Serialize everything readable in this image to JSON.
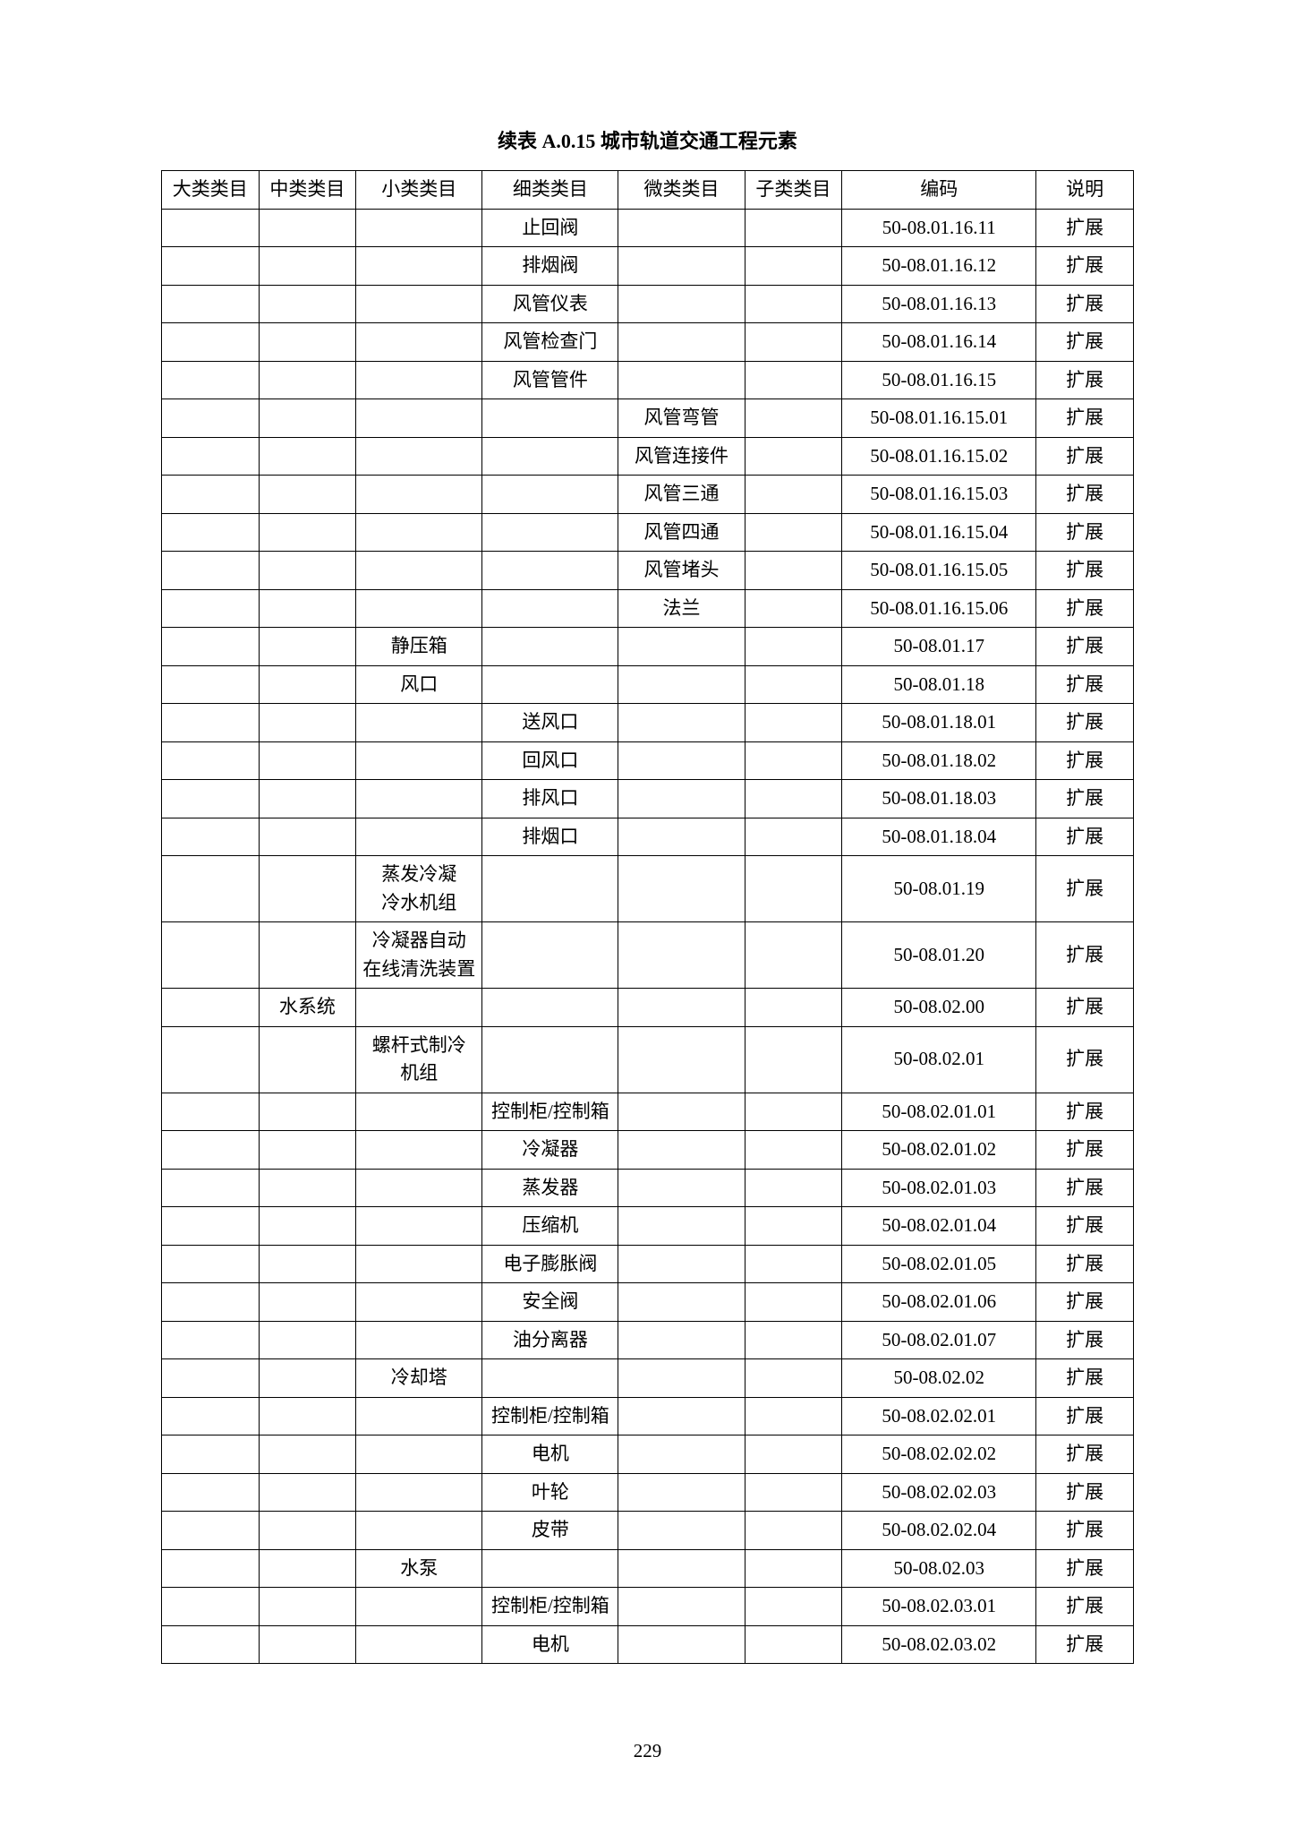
{
  "caption": "续表 A.0.15   城市轨道交通工程元素",
  "page_number": "229",
  "headers": [
    "大类类目",
    "中类类目",
    "小类类目",
    "细类类目",
    "微类类目",
    "子类类目",
    "编码",
    "说明"
  ],
  "colors": {
    "text": "#000000",
    "border": "#000000",
    "background": "#ffffff"
  },
  "font_sizes": {
    "caption": 22,
    "cell": 21,
    "page_num": 21
  },
  "column_widths_pct": [
    10,
    10,
    13,
    14,
    13,
    10,
    20,
    10
  ],
  "rows": [
    {
      "c": [
        "",
        "",
        "",
        "止回阀",
        "",
        "",
        "50-08.01.16.11",
        "扩展"
      ]
    },
    {
      "c": [
        "",
        "",
        "",
        "排烟阀",
        "",
        "",
        "50-08.01.16.12",
        "扩展"
      ]
    },
    {
      "c": [
        "",
        "",
        "",
        "风管仪表",
        "",
        "",
        "50-08.01.16.13",
        "扩展"
      ]
    },
    {
      "c": [
        "",
        "",
        "",
        "风管检查门",
        "",
        "",
        "50-08.01.16.14",
        "扩展"
      ]
    },
    {
      "c": [
        "",
        "",
        "",
        "风管管件",
        "",
        "",
        "50-08.01.16.15",
        "扩展"
      ]
    },
    {
      "c": [
        "",
        "",
        "",
        "",
        "风管弯管",
        "",
        "50-08.01.16.15.01",
        "扩展"
      ]
    },
    {
      "c": [
        "",
        "",
        "",
        "",
        "风管连接件",
        "",
        "50-08.01.16.15.02",
        "扩展"
      ]
    },
    {
      "c": [
        "",
        "",
        "",
        "",
        "风管三通",
        "",
        "50-08.01.16.15.03",
        "扩展"
      ]
    },
    {
      "c": [
        "",
        "",
        "",
        "",
        "风管四通",
        "",
        "50-08.01.16.15.04",
        "扩展"
      ]
    },
    {
      "c": [
        "",
        "",
        "",
        "",
        "风管堵头",
        "",
        "50-08.01.16.15.05",
        "扩展"
      ]
    },
    {
      "c": [
        "",
        "",
        "",
        "",
        "法兰",
        "",
        "50-08.01.16.15.06",
        "扩展"
      ]
    },
    {
      "c": [
        "",
        "",
        "静压箱",
        "",
        "",
        "",
        "50-08.01.17",
        "扩展"
      ]
    },
    {
      "c": [
        "",
        "",
        "风口",
        "",
        "",
        "",
        "50-08.01.18",
        "扩展"
      ]
    },
    {
      "c": [
        "",
        "",
        "",
        "送风口",
        "",
        "",
        "50-08.01.18.01",
        "扩展"
      ]
    },
    {
      "c": [
        "",
        "",
        "",
        "回风口",
        "",
        "",
        "50-08.01.18.02",
        "扩展"
      ]
    },
    {
      "c": [
        "",
        "",
        "",
        "排风口",
        "",
        "",
        "50-08.01.18.03",
        "扩展"
      ]
    },
    {
      "c": [
        "",
        "",
        "",
        "排烟口",
        "",
        "",
        "50-08.01.18.04",
        "扩展"
      ]
    },
    {
      "c": [
        "",
        "",
        "蒸发冷凝\n冷水机组",
        "",
        "",
        "",
        "50-08.01.19",
        "扩展"
      ]
    },
    {
      "c": [
        "",
        "",
        "冷凝器自动\n在线清洗装置",
        "",
        "",
        "",
        "50-08.01.20",
        "扩展"
      ]
    },
    {
      "c": [
        "",
        "水系统",
        "",
        "",
        "",
        "",
        "50-08.02.00",
        "扩展"
      ]
    },
    {
      "c": [
        "",
        "",
        "螺杆式制冷\n机组",
        "",
        "",
        "",
        "50-08.02.01",
        "扩展"
      ]
    },
    {
      "c": [
        "",
        "",
        "",
        "控制柜/控制箱",
        "",
        "",
        "50-08.02.01.01",
        "扩展"
      ]
    },
    {
      "c": [
        "",
        "",
        "",
        "冷凝器",
        "",
        "",
        "50-08.02.01.02",
        "扩展"
      ]
    },
    {
      "c": [
        "",
        "",
        "",
        "蒸发器",
        "",
        "",
        "50-08.02.01.03",
        "扩展"
      ]
    },
    {
      "c": [
        "",
        "",
        "",
        "压缩机",
        "",
        "",
        "50-08.02.01.04",
        "扩展"
      ]
    },
    {
      "c": [
        "",
        "",
        "",
        "电子膨胀阀",
        "",
        "",
        "50-08.02.01.05",
        "扩展"
      ]
    },
    {
      "c": [
        "",
        "",
        "",
        "安全阀",
        "",
        "",
        "50-08.02.01.06",
        "扩展"
      ]
    },
    {
      "c": [
        "",
        "",
        "",
        "油分离器",
        "",
        "",
        "50-08.02.01.07",
        "扩展"
      ]
    },
    {
      "c": [
        "",
        "",
        "冷却塔",
        "",
        "",
        "",
        "50-08.02.02",
        "扩展"
      ]
    },
    {
      "c": [
        "",
        "",
        "",
        "控制柜/控制箱",
        "",
        "",
        "50-08.02.02.01",
        "扩展"
      ]
    },
    {
      "c": [
        "",
        "",
        "",
        "电机",
        "",
        "",
        "50-08.02.02.02",
        "扩展"
      ]
    },
    {
      "c": [
        "",
        "",
        "",
        "叶轮",
        "",
        "",
        "50-08.02.02.03",
        "扩展"
      ]
    },
    {
      "c": [
        "",
        "",
        "",
        "皮带",
        "",
        "",
        "50-08.02.02.04",
        "扩展"
      ]
    },
    {
      "c": [
        "",
        "",
        "水泵",
        "",
        "",
        "",
        "50-08.02.03",
        "扩展"
      ]
    },
    {
      "c": [
        "",
        "",
        "",
        "控制柜/控制箱",
        "",
        "",
        "50-08.02.03.01",
        "扩展"
      ]
    },
    {
      "c": [
        "",
        "",
        "",
        "电机",
        "",
        "",
        "50-08.02.03.02",
        "扩展"
      ]
    }
  ]
}
